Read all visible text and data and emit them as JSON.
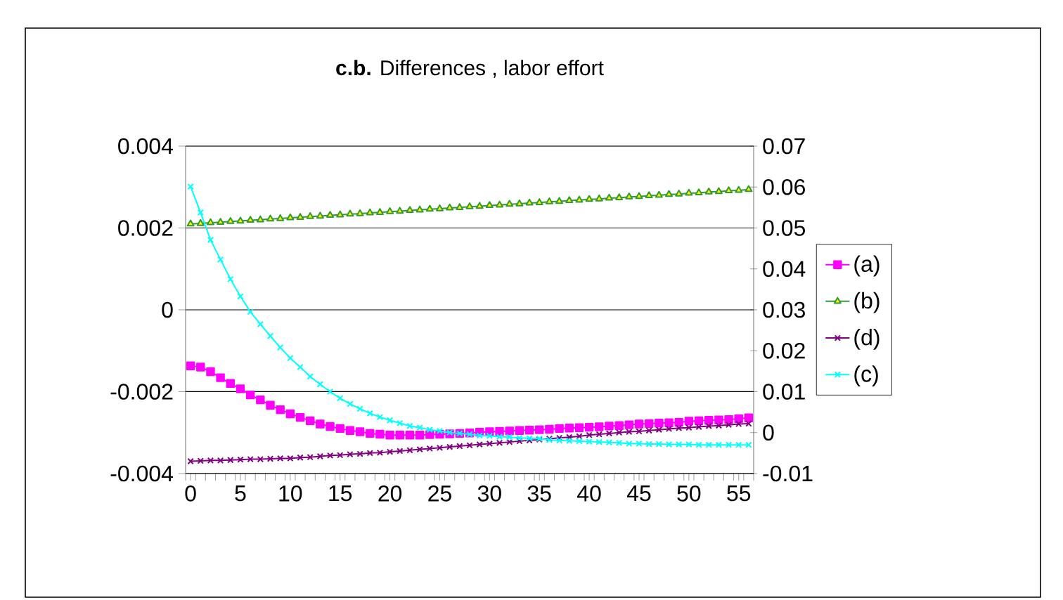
{
  "chart_data": {
    "type": "line",
    "title": "**c.b.** Differences , labor effort",
    "categories": [
      "0",
      null,
      null,
      null,
      null,
      "5",
      null,
      null,
      null,
      null,
      "10",
      null,
      null,
      null,
      null,
      "15",
      null,
      null,
      null,
      null,
      "20",
      null,
      null,
      null,
      null,
      "25",
      null,
      null,
      null,
      null,
      "30",
      null,
      null,
      null,
      null,
      "35",
      null,
      null,
      null,
      null,
      "40",
      null,
      null,
      null,
      null,
      "45",
      null,
      null,
      null,
      null,
      "50",
      null,
      null,
      null,
      null,
      "55",
      null
    ],
    "ylim": [
      -0.004,
      0.004
    ],
    "yticks": [
      -0.004,
      -0.002,
      0,
      0.002,
      0.004
    ],
    "y2lim": [
      -0.01,
      0.07
    ],
    "y2ticks": [
      -0.01,
      0,
      0.01,
      0.02,
      0.03,
      0.04,
      0.05,
      0.06,
      0.07
    ],
    "grid": "y",
    "legend": "right",
    "series": [
      {
        "name": "(a)",
        "color": "#ff00ff",
        "marker": "square",
        "values": [
          -0.00137,
          -0.0014,
          -0.00151,
          -0.00166,
          -0.0018,
          -0.00193,
          -0.00208,
          -0.0022,
          -0.00233,
          -0.00244,
          -0.00254,
          -0.00263,
          -0.00271,
          -0.00279,
          -0.00285,
          -0.0029,
          -0.00295,
          -0.00298,
          -0.00302,
          -0.00304,
          -0.00306,
          -0.00306,
          -0.00306,
          -0.00306,
          -0.00305,
          -0.00304,
          -0.00303,
          -0.00302,
          -0.00301,
          -0.00299,
          -0.00298,
          -0.00297,
          -0.00296,
          -0.00295,
          -0.00294,
          -0.00293,
          -0.00292,
          -0.0029,
          -0.00289,
          -0.00288,
          -0.00287,
          -0.00286,
          -0.00284,
          -0.00283,
          -0.00281,
          -0.00279,
          -0.00278,
          -0.00277,
          -0.00276,
          -0.00275,
          -0.00272,
          -0.00271,
          -0.0027,
          -0.00269,
          -0.00268,
          -0.00266,
          -0.00264
        ]
      },
      {
        "name": "(b)",
        "color": "#339933",
        "marker": "triangle",
        "axis": "y2",
        "values": [
          0.051,
          0.0511,
          0.0513,
          0.0514,
          0.0516,
          0.0517,
          0.0519,
          0.052,
          0.0522,
          0.0523,
          0.0525,
          0.0526,
          0.0528,
          0.0529,
          0.0531,
          0.0532,
          0.0534,
          0.0535,
          0.0537,
          0.0538,
          0.054,
          0.0541,
          0.0543,
          0.0544,
          0.0546,
          0.0547,
          0.0549,
          0.055,
          0.0552,
          0.0553,
          0.0555,
          0.0556,
          0.0558,
          0.0559,
          0.0561,
          0.0562,
          0.0564,
          0.0565,
          0.0567,
          0.0568,
          0.057,
          0.0571,
          0.0573,
          0.0574,
          0.0576,
          0.0577,
          0.0579,
          0.058,
          0.0582,
          0.0583,
          0.0585,
          0.0586,
          0.0588,
          0.0589,
          0.0591,
          0.0592,
          0.0594
        ]
      },
      {
        "name": "(d)",
        "color": "#800080",
        "marker": "cross",
        "values": [
          -0.0037,
          -0.00369,
          -0.00368,
          -0.00368,
          -0.00367,
          -0.00366,
          -0.00365,
          -0.00365,
          -0.00364,
          -0.00363,
          -0.00363,
          -0.00361,
          -0.0036,
          -0.00358,
          -0.00356,
          -0.00355,
          -0.00353,
          -0.00352,
          -0.0035,
          -0.00349,
          -0.00347,
          -0.00345,
          -0.00343,
          -0.00341,
          -0.00339,
          -0.00337,
          -0.00335,
          -0.00333,
          -0.00331,
          -0.00329,
          -0.00327,
          -0.00325,
          -0.00323,
          -0.00321,
          -0.00319,
          -0.00317,
          -0.00315,
          -0.00313,
          -0.00311,
          -0.00309,
          -0.00306,
          -0.00304,
          -0.00302,
          -0.003,
          -0.00298,
          -0.00297,
          -0.00295,
          -0.00293,
          -0.00291,
          -0.00289,
          -0.00288,
          -0.00286,
          -0.00284,
          -0.00283,
          -0.00281,
          -0.00279,
          -0.00278
        ]
      },
      {
        "name": "(c)",
        "color": "#00ffff",
        "marker": "cross",
        "axis": "y2",
        "values": [
          0.0601,
          0.0538,
          0.0471,
          0.0423,
          0.0375,
          0.0333,
          0.0295,
          0.0265,
          0.0236,
          0.0208,
          0.0182,
          0.016,
          0.0137,
          0.0118,
          0.01,
          0.0084,
          0.007,
          0.0058,
          0.0047,
          0.0038,
          0.003,
          0.0023,
          0.0016,
          0.0012,
          0.0007,
          0.0004,
          0.0,
          -0.0002,
          -0.0004,
          -0.0007,
          -0.0008,
          -0.001,
          -0.0011,
          -0.0013,
          -0.0014,
          -0.0015,
          -0.0018,
          -0.0019,
          -0.002,
          -0.0021,
          -0.0022,
          -0.0023,
          -0.0024,
          -0.0025,
          -0.0027,
          -0.0027,
          -0.0028,
          -0.0028,
          -0.0029,
          -0.0029,
          -0.0029,
          -0.003,
          -0.003,
          -0.003,
          -0.003,
          -0.003,
          -0.003
        ]
      }
    ]
  }
}
